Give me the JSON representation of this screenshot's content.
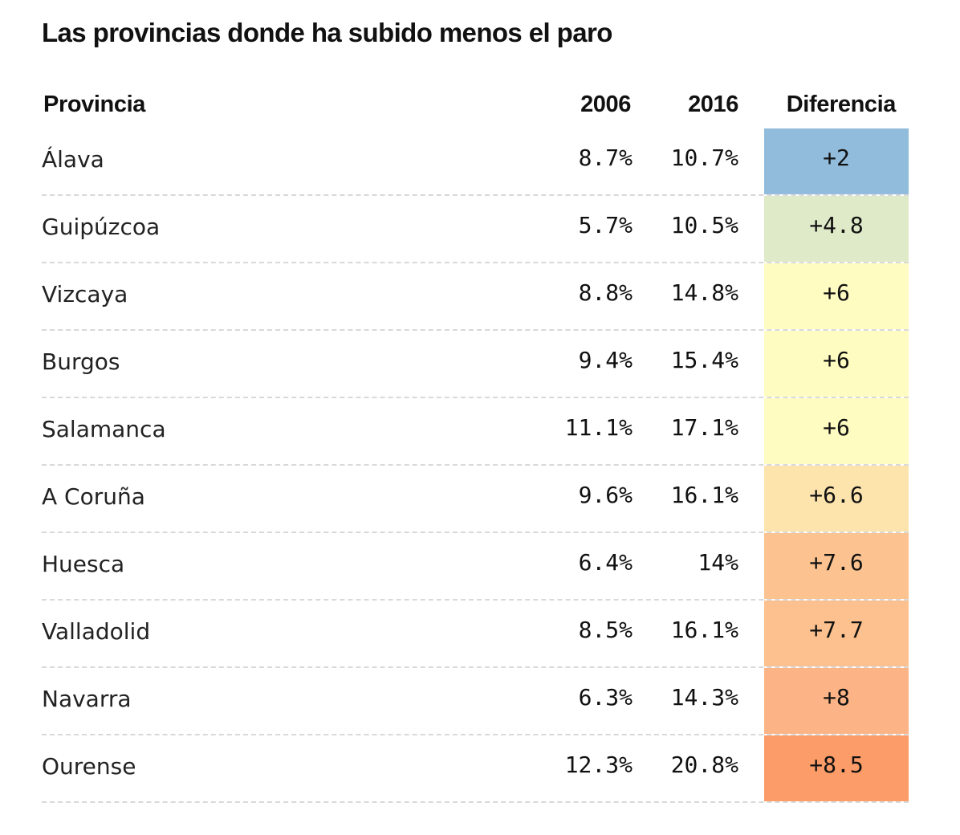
{
  "title": "Las provincias donde ha subido menos el paro",
  "chart_data": {
    "type": "table",
    "title": "Las provincias donde ha subido menos el paro",
    "columns": [
      "Provincia",
      "2006",
      "2016",
      "Diferencia"
    ],
    "rows": [
      {
        "provincia": "Álava",
        "y2006": "8.7%",
        "y2016": "10.7%",
        "diferencia": "+2",
        "color": "#92bcdb"
      },
      {
        "provincia": "Guipúzcoa",
        "y2006": "5.7%",
        "y2016": "10.5%",
        "diferencia": "+4.8",
        "color": "#dfeac8"
      },
      {
        "provincia": "Vizcaya",
        "y2006": "8.8%",
        "y2016": "14.8%",
        "diferencia": "+6",
        "color": "#fefcc1"
      },
      {
        "provincia": "Burgos",
        "y2006": "9.4%",
        "y2016": "15.4%",
        "diferencia": "+6",
        "color": "#fefcc1"
      },
      {
        "provincia": "Salamanca",
        "y2006": "11.1%",
        "y2016": "17.1%",
        "diferencia": "+6",
        "color": "#fefcc1"
      },
      {
        "provincia": "A Coruña",
        "y2006": "9.6%",
        "y2016": "16.1%",
        "diferencia": "+6.6",
        "color": "#fde4ad"
      },
      {
        "provincia": "Huesca",
        "y2006": "6.4%",
        "y2016": "14%",
        "diferencia": "+7.6",
        "color": "#fcc390"
      },
      {
        "provincia": "Valladolid",
        "y2006": "8.5%",
        "y2016": "16.1%",
        "diferencia": "+7.7",
        "color": "#fcc18e"
      },
      {
        "provincia": "Navarra",
        "y2006": "6.3%",
        "y2016": "14.3%",
        "diferencia": "+8",
        "color": "#fcb486"
      },
      {
        "provincia": "Ourense",
        "y2006": "12.3%",
        "y2016": "20.8%",
        "diferencia": "+8.5",
        "color": "#fc9c68"
      }
    ]
  }
}
